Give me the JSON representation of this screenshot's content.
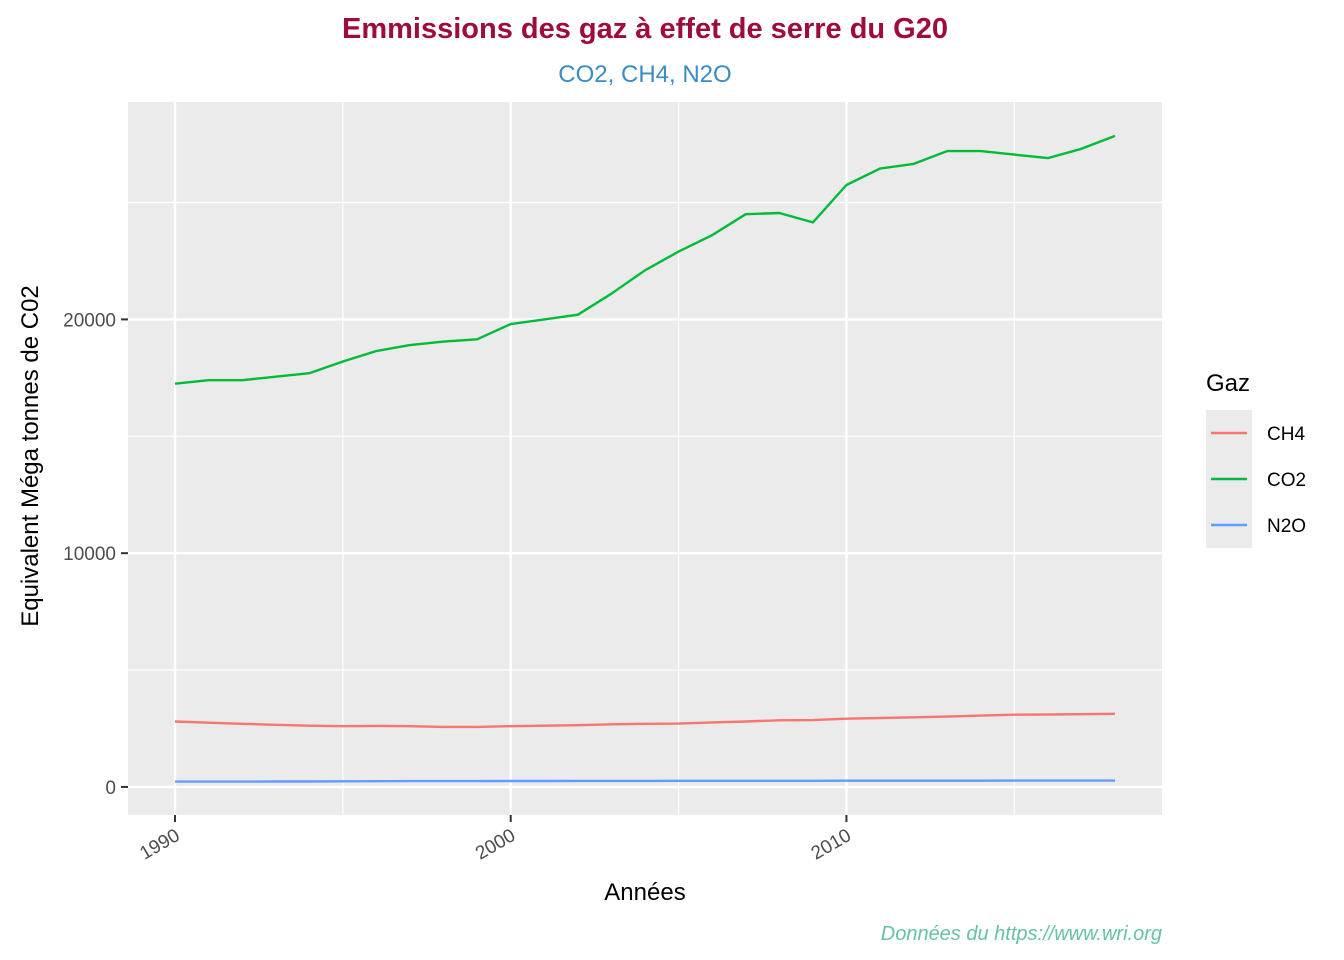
{
  "chart_data": {
    "type": "line",
    "title": "Emmissions des gaz à effet de serre du G20",
    "subtitle": "CO2, CH4, N2O",
    "caption": "Données du https://www.wri.org",
    "xlabel": "Années",
    "ylabel": "Equivalent Méga tonnes de C02",
    "xlim": [
      1988.6,
      2019.4
    ],
    "ylim": [
      -1200,
      29300
    ],
    "x_ticks": [
      1990,
      2000,
      2010
    ],
    "x_minor_ticks": [
      1995,
      2005,
      2015
    ],
    "y_ticks": [
      0,
      10000,
      20000
    ],
    "y_minor_ticks": [
      5000,
      15000,
      25000
    ],
    "grid": true,
    "legend": {
      "title": "Gaz",
      "position": "right"
    },
    "colors": {
      "title": "#9e0b3d",
      "subtitle": "#3a8cc5",
      "caption": "#66c2a5",
      "panel": "#ebebeb",
      "grid": "#ffffff"
    },
    "x": [
      1990,
      1991,
      1992,
      1993,
      1994,
      1995,
      1996,
      1997,
      1998,
      1999,
      2000,
      2001,
      2002,
      2003,
      2004,
      2005,
      2006,
      2007,
      2008,
      2009,
      2010,
      2011,
      2012,
      2013,
      2014,
      2015,
      2016,
      2017,
      2018
    ],
    "series": [
      {
        "name": "CH4",
        "color": "#f8766d",
        "values": [
          2800,
          2750,
          2700,
          2660,
          2620,
          2600,
          2610,
          2600,
          2570,
          2570,
          2600,
          2620,
          2640,
          2680,
          2700,
          2710,
          2760,
          2800,
          2850,
          2860,
          2920,
          2950,
          2980,
          3010,
          3050,
          3090,
          3100,
          3110,
          3130
        ]
      },
      {
        "name": "CO2",
        "color": "#00ba38",
        "values": [
          17250,
          17400,
          17400,
          17550,
          17700,
          18200,
          18650,
          18900,
          19050,
          19150,
          19800,
          20000,
          20200,
          21100,
          22100,
          22900,
          23600,
          24500,
          24550,
          24150,
          25750,
          26450,
          26650,
          27200,
          27200,
          27050,
          26900,
          27300,
          27850
        ]
      },
      {
        "name": "N2O",
        "color": "#619cff",
        "values": [
          230,
          230,
          230,
          235,
          235,
          240,
          245,
          250,
          250,
          250,
          255,
          255,
          258,
          258,
          260,
          262,
          262,
          262,
          265,
          265,
          268,
          268,
          268,
          268,
          268,
          270,
          270,
          270,
          272
        ]
      }
    ]
  }
}
